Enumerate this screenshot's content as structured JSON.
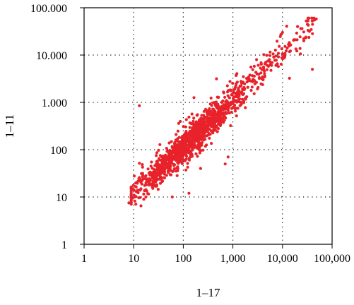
{
  "chart_data": {
    "type": "scatter",
    "title": "",
    "xlabel": "1–17",
    "ylabel": "1–11",
    "xscale": "log",
    "yscale": "log",
    "xlim": [
      1,
      100000
    ],
    "ylim": [
      1,
      100000
    ],
    "grid": true,
    "grid_style": "dotted",
    "marker_color": "#e8222a",
    "x_ticks": [
      1,
      10,
      100,
      1000,
      10000,
      100000
    ],
    "x_tick_labels": [
      "1",
      "10",
      "100",
      "1,000",
      "10,000",
      "100,000"
    ],
    "y_ticks": [
      1,
      10,
      100,
      1000,
      10000,
      100000
    ],
    "y_tick_labels": [
      "1",
      "10",
      "100",
      "1.000",
      "10.000",
      "100.000"
    ],
    "point_count": 1400,
    "points_sample": [
      {
        "x": 8,
        "y": 7.5
      },
      {
        "x": 14,
        "y": 6.5
      },
      {
        "x": 12,
        "y": 14
      },
      {
        "x": 13,
        "y": 850
      },
      {
        "x": 16,
        "y": 9
      },
      {
        "x": 25,
        "y": 18
      },
      {
        "x": 60,
        "y": 10
      },
      {
        "x": 130,
        "y": 12
      },
      {
        "x": 700,
        "y": 50
      },
      {
        "x": 800,
        "y": 70
      },
      {
        "x": 3000,
        "y": 8000
      },
      {
        "x": 10000,
        "y": 30000
      },
      {
        "x": 40000,
        "y": 5000
      },
      {
        "x": 44000,
        "y": 55000
      },
      {
        "x": 48000,
        "y": 58000
      }
    ],
    "trend": {
      "slope": 1.0,
      "intercept_log10": 0.05,
      "scatter_sd_log10": 0.16
    }
  }
}
